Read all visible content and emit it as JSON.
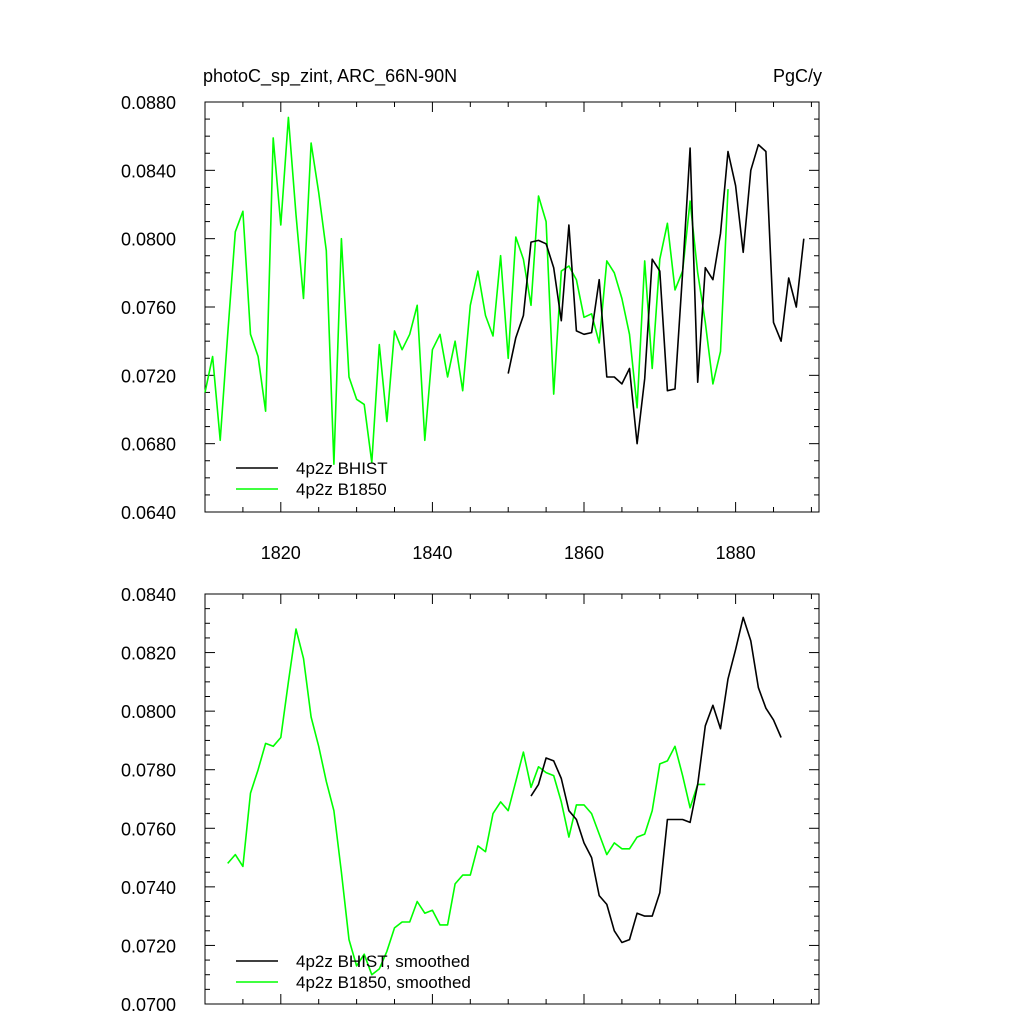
{
  "chart_data": [
    {
      "type": "line",
      "title": "photoC_sp_zint, ARC_66N-90N",
      "units": "PgC/y",
      "xlim": [
        1810,
        1891
      ],
      "ylim": [
        0.064,
        0.088
      ],
      "xticks": [
        1820,
        1840,
        1860,
        1880
      ],
      "xtick_labels": [
        "1820",
        "1840",
        "1860",
        "1880"
      ],
      "yticks": [
        0.064,
        0.068,
        0.072,
        0.076,
        0.08,
        0.084,
        0.088
      ],
      "ytick_labels": [
        "0.0640",
        "0.0680",
        "0.0720",
        "0.0760",
        "0.0800",
        "0.0840",
        "0.0880"
      ],
      "legend_position": "bottom-left",
      "series": [
        {
          "name": "4p2z BHIST",
          "color": "#000000",
          "x": [
            1850,
            1851,
            1852,
            1853,
            1854,
            1855,
            1856,
            1857,
            1858,
            1859,
            1860,
            1861,
            1862,
            1863,
            1864,
            1865,
            1866,
            1867,
            1868,
            1869,
            1870,
            1871,
            1872,
            1873,
            1874,
            1875,
            1876,
            1877,
            1878,
            1879,
            1880,
            1881,
            1882,
            1883,
            1884,
            1885,
            1886,
            1887,
            1888,
            1889
          ],
          "y": [
            0.0721,
            0.0742,
            0.0755,
            0.0798,
            0.0799,
            0.0797,
            0.0783,
            0.0752,
            0.0808,
            0.0746,
            0.0744,
            0.0745,
            0.0776,
            0.0719,
            0.0719,
            0.0715,
            0.0724,
            0.068,
            0.0718,
            0.0788,
            0.0781,
            0.0711,
            0.0712,
            0.078,
            0.0853,
            0.0716,
            0.0783,
            0.0776,
            0.0803,
            0.0851,
            0.0831,
            0.0792,
            0.084,
            0.0855,
            0.0851,
            0.0751,
            0.074,
            0.0777,
            0.076,
            0.08
          ]
        },
        {
          "name": "4p2z B1850",
          "color": "#00ff00",
          "x": [
            1810,
            1811,
            1812,
            1813,
            1814,
            1815,
            1816,
            1817,
            1818,
            1819,
            1820,
            1821,
            1822,
            1823,
            1824,
            1825,
            1826,
            1827,
            1828,
            1829,
            1830,
            1831,
            1832,
            1833,
            1834,
            1835,
            1836,
            1837,
            1838,
            1839,
            1840,
            1841,
            1842,
            1843,
            1844,
            1845,
            1846,
            1847,
            1848,
            1849,
            1850,
            1851,
            1852,
            1853,
            1854,
            1855,
            1856,
            1857,
            1858,
            1859,
            1860,
            1861,
            1862,
            1863,
            1864,
            1865,
            1866,
            1867,
            1868,
            1869,
            1870,
            1871,
            1872,
            1873,
            1874,
            1875,
            1876,
            1877,
            1878,
            1879
          ],
          "y": [
            0.071,
            0.0731,
            0.0682,
            0.0744,
            0.0804,
            0.0816,
            0.0744,
            0.0731,
            0.0699,
            0.0859,
            0.0808,
            0.0871,
            0.0814,
            0.0765,
            0.0856,
            0.0827,
            0.0793,
            0.0668,
            0.08,
            0.0719,
            0.0706,
            0.0703,
            0.0669,
            0.0738,
            0.0693,
            0.0746,
            0.0735,
            0.0744,
            0.0761,
            0.0682,
            0.0735,
            0.0744,
            0.0719,
            0.074,
            0.0711,
            0.0761,
            0.0781,
            0.0755,
            0.0743,
            0.079,
            0.073,
            0.0801,
            0.0788,
            0.0761,
            0.0825,
            0.081,
            0.0709,
            0.0781,
            0.0784,
            0.0776,
            0.0754,
            0.0756,
            0.0739,
            0.0787,
            0.078,
            0.0765,
            0.0744,
            0.0701,
            0.0787,
            0.0724,
            0.0788,
            0.0809,
            0.077,
            0.0781,
            0.0822,
            0.078,
            0.0751,
            0.0715,
            0.0734,
            0.0829
          ]
        }
      ]
    },
    {
      "type": "line",
      "xlim": [
        1810,
        1891
      ],
      "ylim": [
        0.07,
        0.084
      ],
      "xticks": [
        1820,
        1840,
        1860,
        1880
      ],
      "yticks": [
        0.07,
        0.072,
        0.074,
        0.076,
        0.078,
        0.08,
        0.082,
        0.084
      ],
      "ytick_labels": [
        "0.0700",
        "0.0720",
        "0.0740",
        "0.0760",
        "0.0780",
        "0.0800",
        "0.0820",
        "0.0840"
      ],
      "legend_position": "bottom-left",
      "series": [
        {
          "name": "4p2z BHIST, smoothed",
          "color": "#000000",
          "x": [
            1853,
            1854,
            1855,
            1856,
            1857,
            1858,
            1859,
            1860,
            1861,
            1862,
            1863,
            1864,
            1865,
            1866,
            1867,
            1868,
            1869,
            1870,
            1871,
            1872,
            1873,
            1874,
            1875,
            1876,
            1877,
            1878,
            1879,
            1880,
            1881,
            1882,
            1883,
            1884,
            1885,
            1886
          ],
          "y": [
            0.0771,
            0.0775,
            0.0784,
            0.0783,
            0.0777,
            0.0766,
            0.0763,
            0.0755,
            0.075,
            0.0737,
            0.0734,
            0.0725,
            0.0721,
            0.0722,
            0.0731,
            0.073,
            0.073,
            0.0738,
            0.0763,
            0.0763,
            0.0763,
            0.0762,
            0.0775,
            0.0795,
            0.0802,
            0.0794,
            0.0811,
            0.0821,
            0.0832,
            0.0824,
            0.0808,
            0.0801,
            0.0797,
            0.0791
          ]
        },
        {
          "name": "4p2z B1850, smoothed",
          "color": "#00ff00",
          "x": [
            1813,
            1814,
            1815,
            1816,
            1817,
            1818,
            1819,
            1820,
            1821,
            1822,
            1823,
            1824,
            1825,
            1826,
            1827,
            1828,
            1829,
            1830,
            1831,
            1832,
            1833,
            1834,
            1835,
            1836,
            1837,
            1838,
            1839,
            1840,
            1841,
            1842,
            1843,
            1844,
            1845,
            1846,
            1847,
            1848,
            1849,
            1850,
            1851,
            1852,
            1853,
            1854,
            1855,
            1856,
            1857,
            1858,
            1859,
            1860,
            1861,
            1862,
            1863,
            1864,
            1865,
            1866,
            1867,
            1868,
            1869,
            1870,
            1871,
            1872,
            1873,
            1874,
            1875,
            1876
          ],
          "y": [
            0.0748,
            0.0751,
            0.0747,
            0.0772,
            0.078,
            0.0789,
            0.0788,
            0.0791,
            0.081,
            0.0828,
            0.0818,
            0.0798,
            0.0788,
            0.0776,
            0.0766,
            0.0745,
            0.0722,
            0.0713,
            0.0717,
            0.071,
            0.0712,
            0.0718,
            0.0726,
            0.0728,
            0.0728,
            0.0735,
            0.0731,
            0.0732,
            0.0727,
            0.0727,
            0.0741,
            0.0744,
            0.0744,
            0.0754,
            0.0752,
            0.0765,
            0.0769,
            0.0766,
            0.0776,
            0.0786,
            0.0774,
            0.0781,
            0.0779,
            0.0778,
            0.0769,
            0.0757,
            0.0768,
            0.0768,
            0.0765,
            0.0758,
            0.0751,
            0.0755,
            0.0753,
            0.0753,
            0.0757,
            0.0758,
            0.0766,
            0.0782,
            0.0783,
            0.0788,
            0.0778,
            0.0767,
            0.0775,
            0.0775
          ]
        }
      ]
    }
  ]
}
